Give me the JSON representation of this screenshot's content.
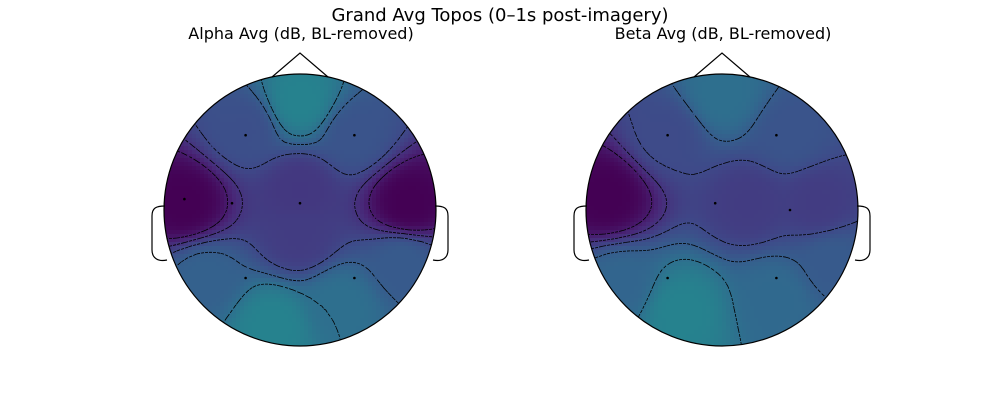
{
  "figure": {
    "suptitle": "Grand Avg Topos (0–1s post-imagery)"
  },
  "chart_data": [
    {
      "type": "heatmap",
      "subtype": "scalp-topomap",
      "title": "Alpha Avg (dB, BL-removed)",
      "colormap": "viridis",
      "contours": "dashed black",
      "colorbar": false,
      "sensors": [
        {
          "x": -0.4,
          "y": 0.55
        },
        {
          "x": 0.4,
          "y": 0.55
        },
        {
          "x": -0.85,
          "y": 0.08
        },
        {
          "x": -0.5,
          "y": 0.05
        },
        {
          "x": 0.0,
          "y": 0.05
        },
        {
          "x": -0.4,
          "y": -0.5
        },
        {
          "x": 0.4,
          "y": -0.5
        }
      ],
      "field_levels": [
        {
          "x": -0.85,
          "y": 0.05,
          "level": 0.0
        },
        {
          "x": 0.8,
          "y": 0.05,
          "level": 0.0
        },
        {
          "x": 0.0,
          "y": 0.8,
          "level": 0.55
        },
        {
          "x": -0.4,
          "y": 0.6,
          "level": 0.3
        },
        {
          "x": 0.4,
          "y": 0.55,
          "level": 0.32
        },
        {
          "x": 0.0,
          "y": 0.15,
          "level": 0.2
        },
        {
          "x": 0.0,
          "y": -0.2,
          "level": 0.22
        },
        {
          "x": -0.2,
          "y": -0.85,
          "level": 0.55
        },
        {
          "x": 0.3,
          "y": -0.7,
          "level": 0.45
        },
        {
          "x": -0.7,
          "y": -0.5,
          "level": 0.38
        },
        {
          "x": 0.75,
          "y": -0.4,
          "level": 0.35
        }
      ]
    },
    {
      "type": "heatmap",
      "subtype": "scalp-topomap",
      "title": "Beta Avg (dB, BL-removed)",
      "colormap": "viridis",
      "contours": "dashed black",
      "colorbar": false,
      "sensors": [
        {
          "x": -0.4,
          "y": 0.55
        },
        {
          "x": 0.4,
          "y": 0.55
        },
        {
          "x": -0.05,
          "y": 0.05
        },
        {
          "x": 0.5,
          "y": 0.0
        },
        {
          "x": -0.4,
          "y": -0.5
        },
        {
          "x": 0.4,
          "y": -0.5
        }
      ],
      "field_levels": [
        {
          "x": -0.85,
          "y": 0.1,
          "level": 0.0
        },
        {
          "x": 0.0,
          "y": 0.85,
          "level": 0.45
        },
        {
          "x": -0.4,
          "y": 0.55,
          "level": 0.28
        },
        {
          "x": 0.5,
          "y": 0.55,
          "level": 0.32
        },
        {
          "x": 0.2,
          "y": 0.05,
          "level": 0.22
        },
        {
          "x": 0.7,
          "y": 0.05,
          "level": 0.22
        },
        {
          "x": -0.3,
          "y": -0.75,
          "level": 0.55
        },
        {
          "x": 0.4,
          "y": -0.65,
          "level": 0.42
        },
        {
          "x": 0.8,
          "y": -0.4,
          "level": 0.35
        },
        {
          "x": -0.75,
          "y": -0.55,
          "level": 0.4
        }
      ]
    }
  ]
}
